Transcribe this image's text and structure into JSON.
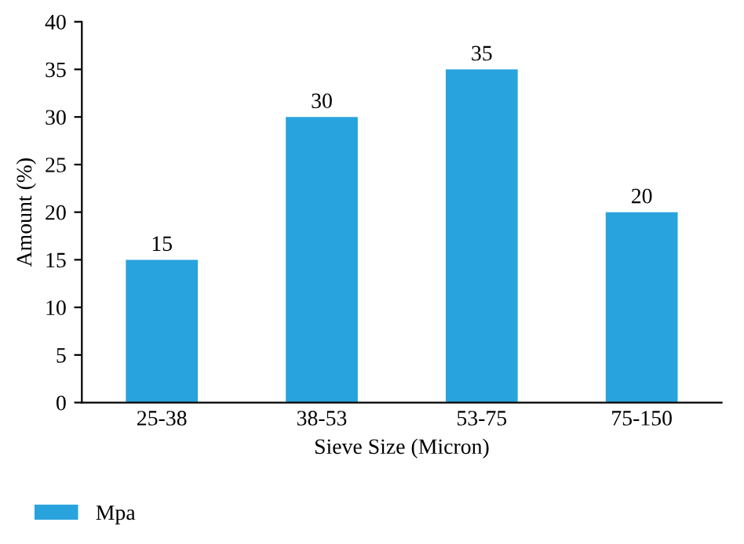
{
  "chart_data": {
    "type": "bar",
    "xlabel": "Sieve Size (Micron)",
    "ylabel": "Amount (%)",
    "categories": [
      "25-38",
      "38-53",
      "53-75",
      "75-150"
    ],
    "series": [
      {
        "name": "Mpa",
        "color": "#29a3dd",
        "values": [
          15,
          30,
          35,
          20
        ]
      }
    ],
    "ylim": [
      0,
      40
    ],
    "yticks": [
      0,
      5,
      10,
      15,
      20,
      25,
      30,
      35,
      40
    ],
    "data_labels": true,
    "legend": "bottom left",
    "grid": false
  }
}
